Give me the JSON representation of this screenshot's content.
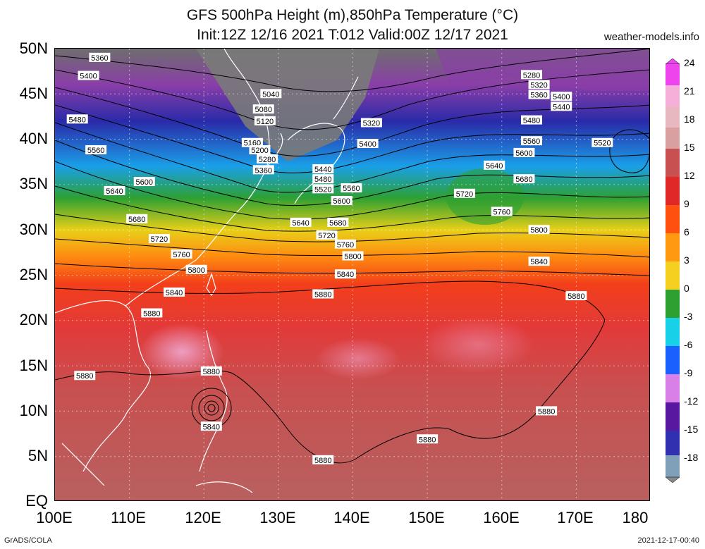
{
  "title_line1": "GFS 500hPa Height (m),850hPa Temperature (°C)",
  "title_line2": "Init:12Z 12/16 2021 T:012 Valid:00Z 12/17 2021",
  "site": "weather-models.info",
  "footer_left": "GrADS/COLA",
  "footer_right": "2021-12-17-00:40",
  "lat_labels": [
    "50N",
    "45N",
    "40N",
    "35N",
    "30N",
    "25N",
    "20N",
    "15N",
    "10N",
    "5N",
    "EQ"
  ],
  "lon_labels": [
    "100E",
    "110E",
    "120E",
    "130E",
    "140E",
    "150E",
    "160E",
    "170E",
    "180"
  ],
  "colorbar_labels": [
    "24",
    "21",
    "18",
    "15",
    "12",
    "9",
    "6",
    "3",
    "0",
    "-3",
    "-6",
    "-9",
    "-12",
    "-15",
    "-18"
  ],
  "colors": {
    "c24": "#ee44ee",
    "c21": "#f0a0c8",
    "c18": "#d8b8b0",
    "c15": "#e23a3a",
    "c12": "#f03c14",
    "c9": "#ff7a10",
    "c6": "#f6c828",
    "c3": "#c8d020",
    "c0": "#2ea032",
    "cm3": "#18d0e8",
    "cm6": "#1a80ff",
    "cm9": "#d880e8",
    "cm12": "#5818a0",
    "cm15": "#3030b0",
    "cm18": "#7fa0b8"
  },
  "contour_labels": [
    {
      "text": "5360",
      "lon": 106.0,
      "lat": 49.0
    },
    {
      "text": "5400",
      "lon": 104.5,
      "lat": 47.0
    },
    {
      "text": "5480",
      "lon": 103.0,
      "lat": 42.2
    },
    {
      "text": "5560",
      "lon": 105.5,
      "lat": 38.8
    },
    {
      "text": "5600",
      "lon": 112.0,
      "lat": 35.3
    },
    {
      "text": "5640",
      "lon": 108.0,
      "lat": 34.3
    },
    {
      "text": "5680",
      "lon": 111.0,
      "lat": 31.2
    },
    {
      "text": "5720",
      "lon": 114.0,
      "lat": 29.0
    },
    {
      "text": "5760",
      "lon": 117.0,
      "lat": 27.3
    },
    {
      "text": "5800",
      "lon": 119.0,
      "lat": 25.6
    },
    {
      "text": "5840",
      "lon": 116.0,
      "lat": 23.1
    },
    {
      "text": "5880",
      "lon": 113.0,
      "lat": 20.8
    },
    {
      "text": "5880",
      "lon": 104.0,
      "lat": 13.9
    },
    {
      "text": "5880",
      "lon": 121.0,
      "lat": 14.4
    },
    {
      "text": "5840",
      "lon": 121.0,
      "lat": 8.3
    },
    {
      "text": "5040",
      "lon": 129.0,
      "lat": 45.0
    },
    {
      "text": "5080",
      "lon": 128.0,
      "lat": 43.3
    },
    {
      "text": "5120",
      "lon": 128.2,
      "lat": 42.0
    },
    {
      "text": "5160",
      "lon": 126.5,
      "lat": 39.6
    },
    {
      "text": "5200",
      "lon": 127.5,
      "lat": 38.8
    },
    {
      "text": "5280",
      "lon": 128.5,
      "lat": 37.8
    },
    {
      "text": "5360",
      "lon": 128.0,
      "lat": 36.6
    },
    {
      "text": "5440",
      "lon": 136.0,
      "lat": 36.7
    },
    {
      "text": "5480",
      "lon": 136.0,
      "lat": 35.6
    },
    {
      "text": "5520",
      "lon": 136.0,
      "lat": 34.5
    },
    {
      "text": "5560",
      "lon": 139.8,
      "lat": 34.6
    },
    {
      "text": "5600",
      "lon": 138.5,
      "lat": 33.2
    },
    {
      "text": "5640",
      "lon": 133.0,
      "lat": 30.8
    },
    {
      "text": "5680",
      "lon": 138.0,
      "lat": 30.8
    },
    {
      "text": "5720",
      "lon": 136.5,
      "lat": 29.4
    },
    {
      "text": "5760",
      "lon": 139.0,
      "lat": 28.4
    },
    {
      "text": "5800",
      "lon": 140.0,
      "lat": 27.1
    },
    {
      "text": "5840",
      "lon": 139.0,
      "lat": 25.1
    },
    {
      "text": "5880",
      "lon": 136.0,
      "lat": 22.9
    },
    {
      "text": "5320",
      "lon": 142.5,
      "lat": 41.8
    },
    {
      "text": "5400",
      "lon": 142.0,
      "lat": 39.5
    },
    {
      "text": "5280",
      "lon": 164.0,
      "lat": 47.1
    },
    {
      "text": "5320",
      "lon": 165.0,
      "lat": 46.0
    },
    {
      "text": "5360",
      "lon": 165.0,
      "lat": 44.9
    },
    {
      "text": "5400",
      "lon": 168.0,
      "lat": 44.7
    },
    {
      "text": "5440",
      "lon": 168.0,
      "lat": 43.6
    },
    {
      "text": "5480",
      "lon": 164.0,
      "lat": 42.1
    },
    {
      "text": "5560",
      "lon": 164.0,
      "lat": 39.8
    },
    {
      "text": "5600",
      "lon": 163.0,
      "lat": 38.5
    },
    {
      "text": "5640",
      "lon": 159.0,
      "lat": 37.1
    },
    {
      "text": "5680",
      "lon": 163.0,
      "lat": 35.6
    },
    {
      "text": "5720",
      "lon": 155.0,
      "lat": 34.0
    },
    {
      "text": "5760",
      "lon": 160.0,
      "lat": 32.0
    },
    {
      "text": "5800",
      "lon": 165.0,
      "lat": 30.0
    },
    {
      "text": "5840",
      "lon": 165.0,
      "lat": 26.5
    },
    {
      "text": "5880",
      "lon": 170.0,
      "lat": 22.7
    },
    {
      "text": "5520",
      "lon": 173.5,
      "lat": 39.6
    },
    {
      "text": "5880",
      "lon": 166.0,
      "lat": 10.0
    },
    {
      "text": "5880",
      "lon": 150.0,
      "lat": 6.9
    },
    {
      "text": "5880",
      "lon": 136.0,
      "lat": 4.6
    }
  ]
}
